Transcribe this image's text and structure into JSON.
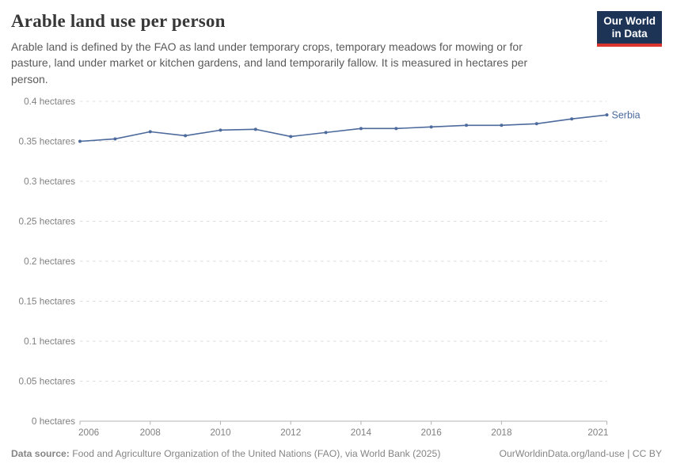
{
  "header": {
    "title": "Arable land use per person",
    "subtitle": "Arable land is defined by the FAO as land under temporary crops, temporary meadows for mowing or for pasture, land under market or kitchen gardens, and land temporarily fallow. It is measured in hectares per person.",
    "logo": {
      "line1": "Our World",
      "line2": "in Data",
      "bg_color": "#1d3456",
      "stripe_color": "#d9352e"
    }
  },
  "chart_data": {
    "type": "line",
    "title": "Arable land use per person",
    "unit": "hectares",
    "xlabel": "",
    "ylabel": "",
    "xlim": [
      2006,
      2021
    ],
    "ylim": [
      0,
      0.4
    ],
    "grid": true,
    "legend_position": "end-of-line",
    "x_ticks": [
      2006,
      2008,
      2010,
      2012,
      2014,
      2016,
      2018,
      2021
    ],
    "y_ticks": [
      {
        "value": 0,
        "label": "0 hectares"
      },
      {
        "value": 0.05,
        "label": "0.05 hectares"
      },
      {
        "value": 0.1,
        "label": "0.1 hectares"
      },
      {
        "value": 0.15,
        "label": "0.15 hectares"
      },
      {
        "value": 0.2,
        "label": "0.2 hectares"
      },
      {
        "value": 0.25,
        "label": "0.25 hectares"
      },
      {
        "value": 0.3,
        "label": "0.3 hectares"
      },
      {
        "value": 0.35,
        "label": "0.35 hectares"
      },
      {
        "value": 0.4,
        "label": "0.4 hectares"
      }
    ],
    "series": [
      {
        "name": "Serbia",
        "color": "#4c6a9c",
        "x": [
          2006,
          2007,
          2008,
          2009,
          2010,
          2011,
          2012,
          2013,
          2014,
          2015,
          2016,
          2017,
          2018,
          2019,
          2020,
          2021
        ],
        "values": [
          0.35,
          0.353,
          0.362,
          0.357,
          0.364,
          0.365,
          0.356,
          0.361,
          0.366,
          0.366,
          0.368,
          0.37,
          0.37,
          0.372,
          0.378,
          0.383
        ]
      }
    ],
    "colors": {
      "gridline": "#dcdcdc",
      "axis": "#b3b3b3",
      "tick_label": "#818181"
    }
  },
  "footer": {
    "source_label": "Data source:",
    "source_text": " Food and Agriculture Organization of the United Nations (FAO), via World Bank (2025)",
    "link_text": "OurWorldinData.org/land-use | CC BY"
  }
}
